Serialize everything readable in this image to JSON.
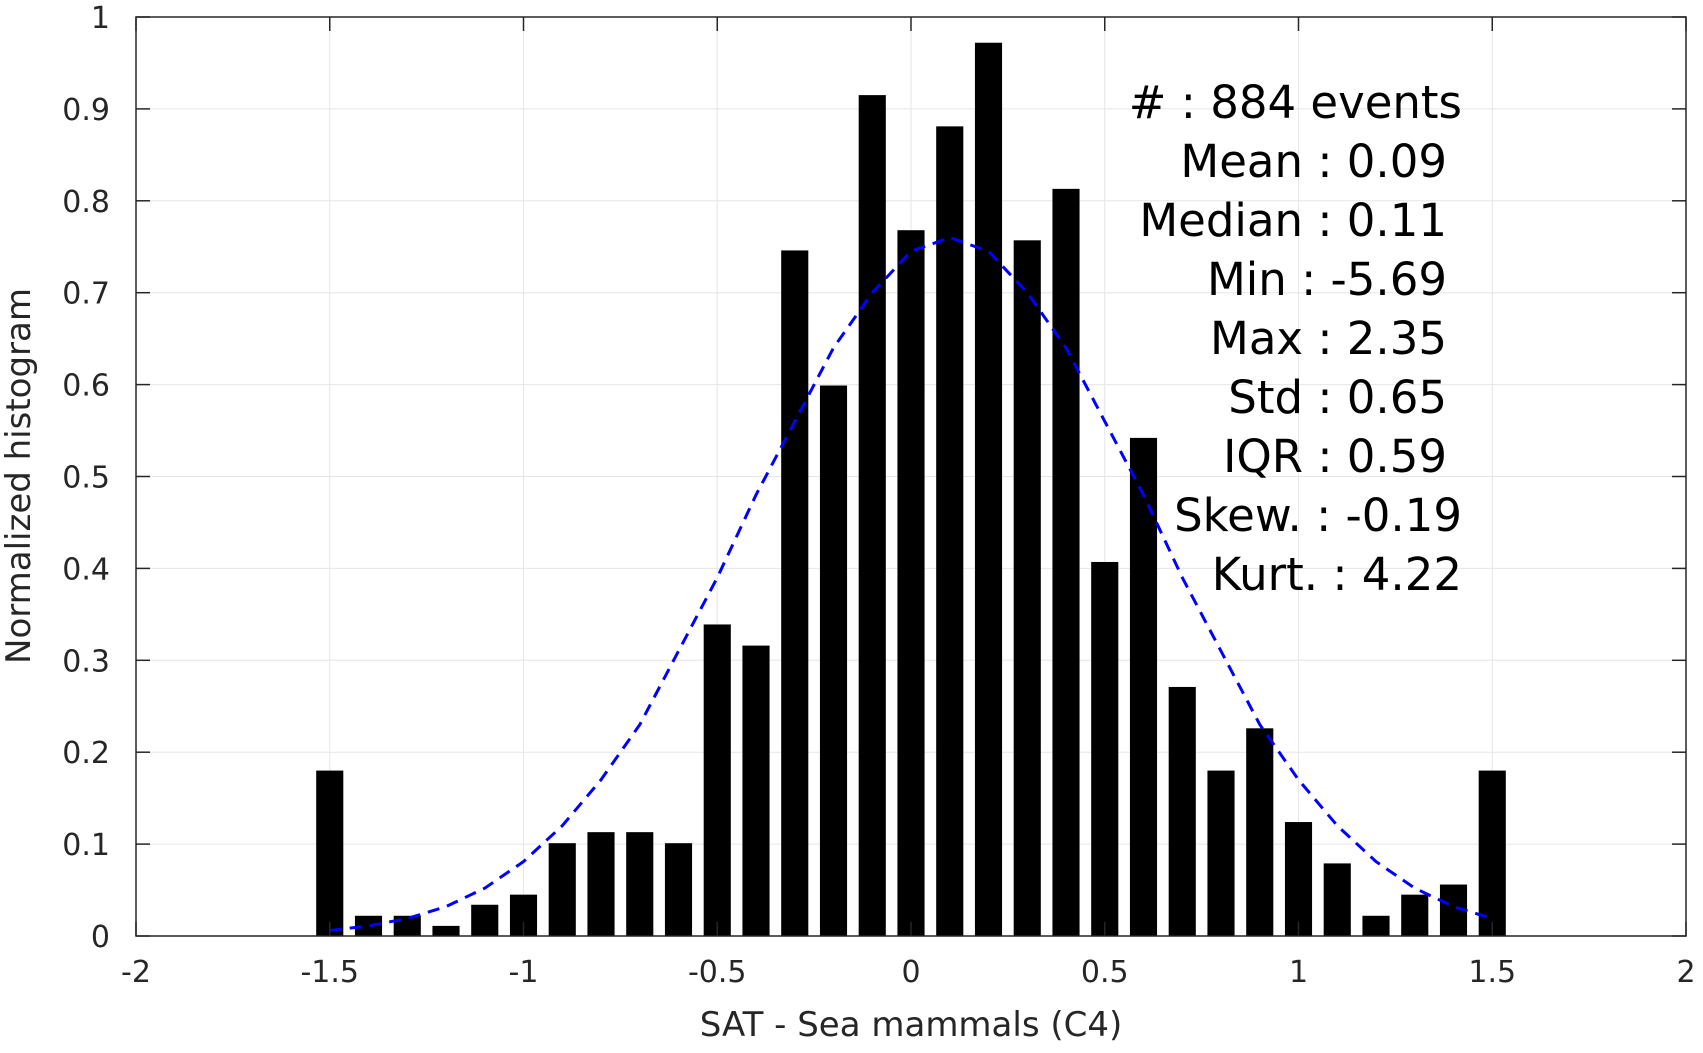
{
  "chart_data": {
    "type": "bar",
    "title": "",
    "xlabel": "SAT - Sea mammals (C4)",
    "ylabel": "Normalized histogram",
    "xlim": [
      -2,
      2
    ],
    "ylim": [
      0,
      1
    ],
    "grid": true,
    "xticks": [
      -2,
      -1.5,
      -1,
      -0.5,
      0,
      0.5,
      1,
      1.5,
      2
    ],
    "xtick_labels": [
      "-2",
      "-1.5",
      "-1",
      "-0.5",
      "0",
      "0.5",
      "1",
      "1.5",
      "2"
    ],
    "yticks": [
      0,
      0.1,
      0.2,
      0.3,
      0.4,
      0.5,
      0.6,
      0.7,
      0.8,
      0.9,
      1
    ],
    "ytick_labels": [
      "0",
      "0.1",
      "0.2",
      "0.3",
      "0.4",
      "0.5",
      "0.6",
      "0.7",
      "0.8",
      "0.9",
      "1"
    ],
    "bar_color": "#000000",
    "bar_width": 0.07,
    "bars": [
      {
        "x": -1.5,
        "y": 0.18
      },
      {
        "x": -1.4,
        "y": 0.022
      },
      {
        "x": -1.3,
        "y": 0.022
      },
      {
        "x": -1.2,
        "y": 0.011
      },
      {
        "x": -1.1,
        "y": 0.034
      },
      {
        "x": -1.0,
        "y": 0.045
      },
      {
        "x": -0.9,
        "y": 0.101
      },
      {
        "x": -0.8,
        "y": 0.113
      },
      {
        "x": -0.7,
        "y": 0.113
      },
      {
        "x": -0.6,
        "y": 0.101
      },
      {
        "x": -0.5,
        "y": 0.339
      },
      {
        "x": -0.4,
        "y": 0.316
      },
      {
        "x": -0.3,
        "y": 0.746
      },
      {
        "x": -0.2,
        "y": 0.599
      },
      {
        "x": -0.1,
        "y": 0.915
      },
      {
        "x": 0.0,
        "y": 0.768
      },
      {
        "x": 0.1,
        "y": 0.881
      },
      {
        "x": 0.2,
        "y": 0.972
      },
      {
        "x": 0.3,
        "y": 0.757
      },
      {
        "x": 0.4,
        "y": 0.813
      },
      {
        "x": 0.5,
        "y": 0.407
      },
      {
        "x": 0.6,
        "y": 0.542
      },
      {
        "x": 0.7,
        "y": 0.271
      },
      {
        "x": 0.8,
        "y": 0.18
      },
      {
        "x": 0.9,
        "y": 0.226
      },
      {
        "x": 1.0,
        "y": 0.124
      },
      {
        "x": 1.1,
        "y": 0.079
      },
      {
        "x": 1.2,
        "y": 0.022
      },
      {
        "x": 1.3,
        "y": 0.045
      },
      {
        "x": 1.4,
        "y": 0.056
      },
      {
        "x": 1.5,
        "y": 0.18
      }
    ],
    "fit_curve": {
      "style": "dashed",
      "color": "#0000ff",
      "x": [
        -1.5,
        -1.4,
        -1.3,
        -1.2,
        -1.1,
        -1.0,
        -0.9,
        -0.8,
        -0.7,
        -0.6,
        -0.5,
        -0.4,
        -0.3,
        -0.2,
        -0.1,
        0.0,
        0.1,
        0.2,
        0.3,
        0.4,
        0.5,
        0.6,
        0.7,
        0.8,
        0.9,
        1.0,
        1.1,
        1.2,
        1.3,
        1.4,
        1.5
      ],
      "y": [
        0.006,
        0.011,
        0.019,
        0.032,
        0.052,
        0.081,
        0.12,
        0.17,
        0.23,
        0.31,
        0.39,
        0.48,
        0.56,
        0.64,
        0.7,
        0.745,
        0.76,
        0.745,
        0.7,
        0.64,
        0.56,
        0.48,
        0.39,
        0.31,
        0.23,
        0.17,
        0.12,
        0.081,
        0.052,
        0.032,
        0.019
      ]
    }
  },
  "stats": {
    "events": "#  : 884 events",
    "mean": "Mean : 0.09",
    "median": "Median : 0.11",
    "min": "Min : -5.69",
    "max": "Max : 2.35",
    "std": "Std : 0.65",
    "iqr": "IQR : 0.59",
    "skew": "Skew. : -0.19",
    "kurt": "Kurt. : 4.22"
  },
  "colors": {
    "grid": "#e6e6e6",
    "axis": "#262626",
    "bars": "#000000",
    "fit": "#0000ff"
  }
}
